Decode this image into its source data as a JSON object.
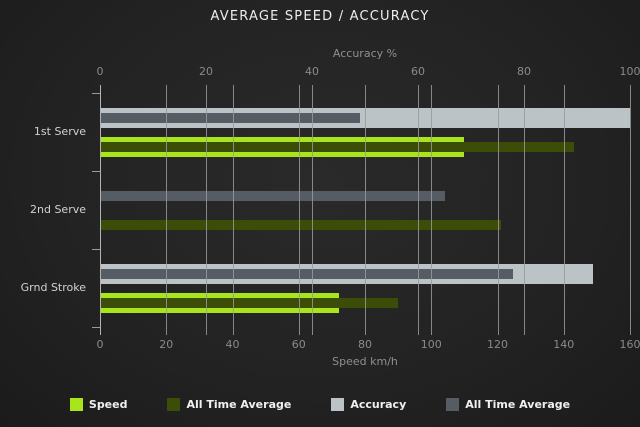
{
  "chart_data": {
    "type": "bar",
    "orientation": "horizontal",
    "title": "AVERAGE SPEED / ACCURACY",
    "categories": [
      "1st Serve",
      "2nd Serve",
      "Grnd Stroke"
    ],
    "axes": {
      "top": {
        "label": "Accuracy %",
        "min": 0,
        "max": 100,
        "ticks": [
          0,
          20,
          40,
          60,
          80,
          100
        ]
      },
      "bottom": {
        "label": "Speed km/h",
        "min": 0,
        "max": 160,
        "ticks": [
          0,
          20,
          40,
          60,
          80,
          100,
          120,
          140,
          160
        ]
      }
    },
    "grid": true,
    "series": [
      {
        "name": "Speed",
        "axis": "bottom",
        "color": "#a8e61b",
        "values": [
          110,
          0,
          72
        ]
      },
      {
        "name": "All Time Average",
        "axis": "bottom",
        "color": "#3c4d07",
        "values": [
          143,
          121,
          90
        ]
      },
      {
        "name": "Accuracy",
        "axis": "top",
        "color": "#bcc3c7",
        "values": [
          100,
          0,
          93
        ]
      },
      {
        "name": "All Time Average",
        "axis": "top",
        "color": "#565c63",
        "values": [
          49,
          65,
          78
        ]
      }
    ],
    "legend": {
      "position": "bottom",
      "items": [
        {
          "label": "Speed",
          "color": "#a8e61b"
        },
        {
          "label": "All Time Average",
          "color": "#3c4d07"
        },
        {
          "label": "Accuracy",
          "color": "#bcc3c7"
        },
        {
          "label": "All Time Average",
          "color": "#565c63"
        }
      ]
    }
  }
}
